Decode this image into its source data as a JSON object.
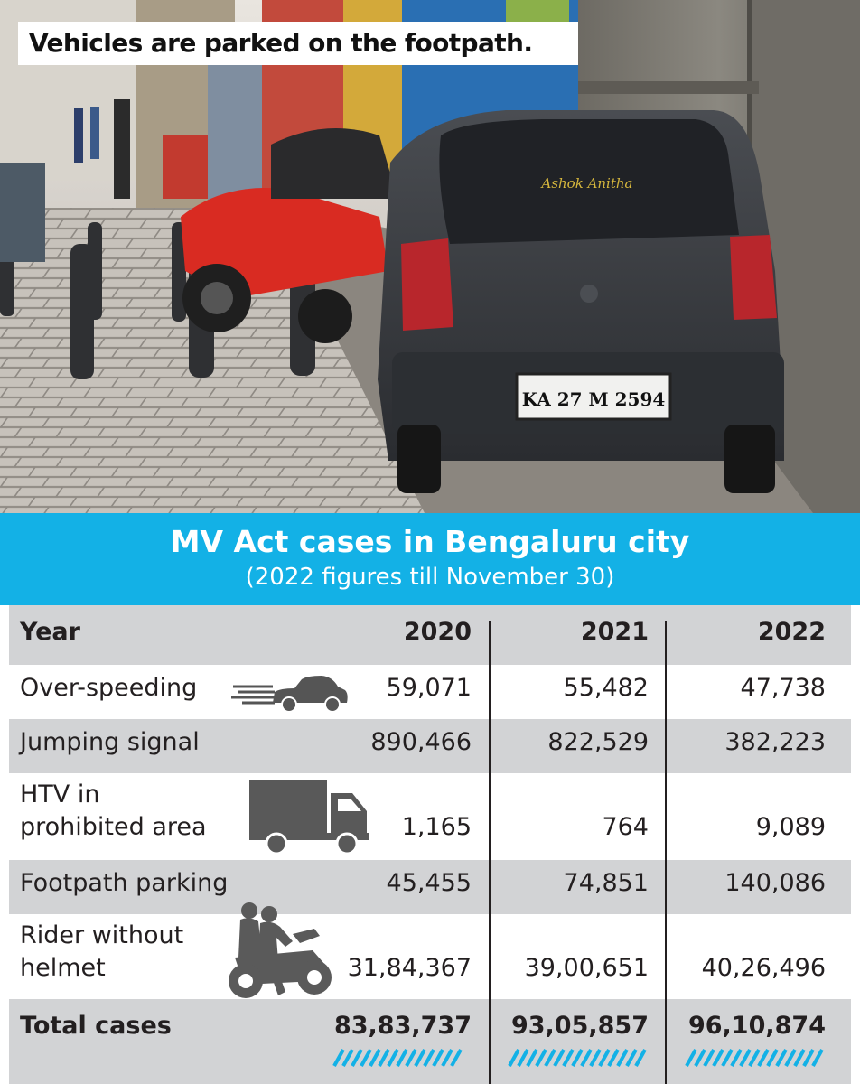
{
  "caption": "Vehicles are parked on the footpath.",
  "photo": {
    "plate": "KA 27 M 2594",
    "rear_sticker": "Ashok Anitha"
  },
  "header": {
    "title": "MV Act cases in Bengaluru city",
    "subtitle": "(2022 figures till November 30)"
  },
  "colors": {
    "band": "#13b1e6",
    "row_grey": "#d2d3d5",
    "text": "#231f20"
  },
  "chart_data": {
    "type": "table",
    "title": "MV Act cases in Bengaluru city",
    "subtitle": "(2022 figures till November 30)",
    "columns": [
      "Year",
      "2020",
      "2021",
      "2022"
    ],
    "rows": [
      {
        "label": "Over-speeding",
        "icon": "car-icon",
        "values": [
          "59,071",
          "55,482",
          "47,738"
        ]
      },
      {
        "label": "Jumping signal",
        "values": [
          "890,466",
          "822,529",
          "382,223"
        ]
      },
      {
        "label_lines": [
          "HTV in",
          "prohibited area"
        ],
        "icon": "truck-icon",
        "values": [
          "1,165",
          "764",
          "9,089"
        ]
      },
      {
        "label": "Footpath parking",
        "values": [
          "45,455",
          "74,851",
          "140,086"
        ]
      },
      {
        "label_lines": [
          "Rider without",
          "helmet"
        ],
        "icon": "motorcycle-riders-icon",
        "values": [
          "31,84,367",
          "39,00,651",
          "40,26,496"
        ]
      }
    ],
    "total": {
      "label": "Total cases",
      "values": [
        "83,83,737",
        "93,05,857",
        "96,10,874"
      ]
    }
  }
}
